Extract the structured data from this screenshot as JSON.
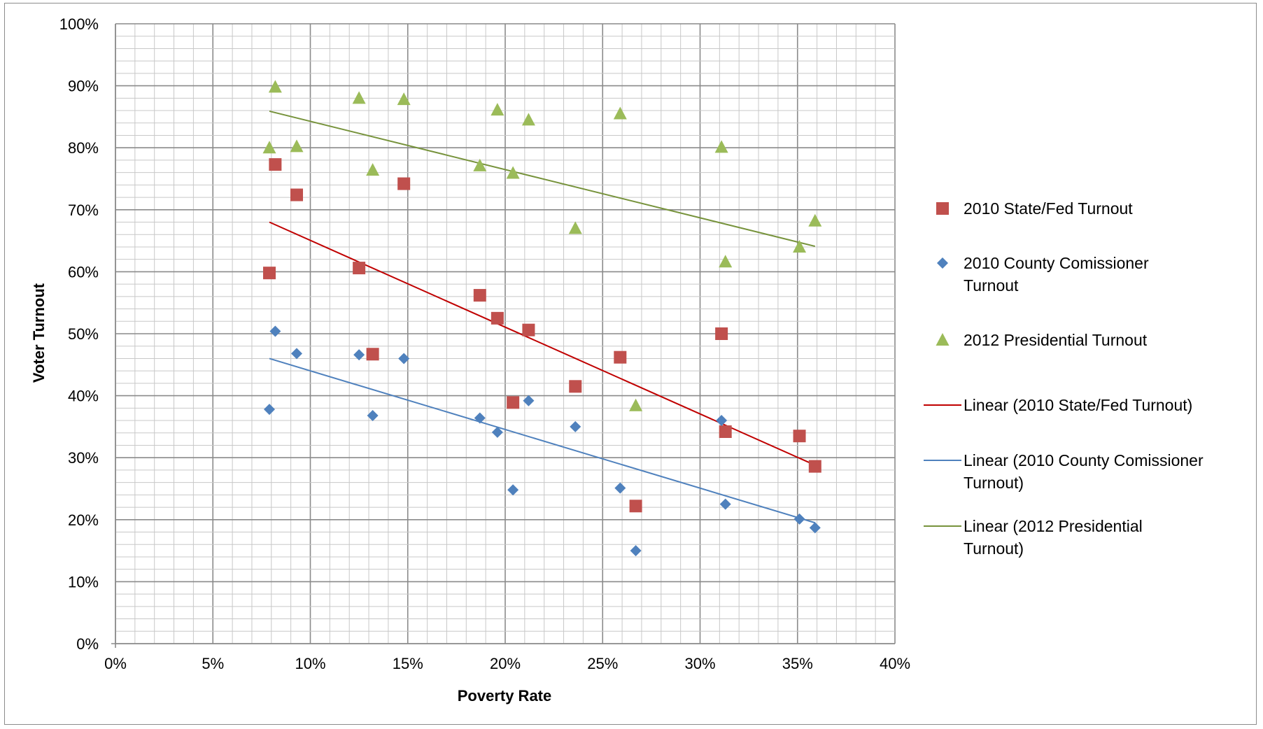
{
  "chart_data": {
    "type": "scatter",
    "title": "",
    "xlabel": "Poverty Rate",
    "ylabel": "Voter Turnout",
    "xlim": [
      0,
      40
    ],
    "ylim": [
      0,
      100
    ],
    "x_ticks": [
      "0%",
      "5%",
      "10%",
      "15%",
      "20%",
      "25%",
      "30%",
      "35%",
      "40%"
    ],
    "y_ticks": [
      "0%",
      "10%",
      "20%",
      "30%",
      "40%",
      "50%",
      "60%",
      "70%",
      "80%",
      "90%",
      "100%"
    ],
    "grid": true,
    "legend_position": "right",
    "series": [
      {
        "name": "2010 State/Fed Turnout",
        "marker": "square",
        "color": "#c0504d",
        "points": [
          [
            7.9,
            59.8
          ],
          [
            8.2,
            77.3
          ],
          [
            9.3,
            72.4
          ],
          [
            12.5,
            60.6
          ],
          [
            13.2,
            46.7
          ],
          [
            14.8,
            74.2
          ],
          [
            18.7,
            56.2
          ],
          [
            19.6,
            52.5
          ],
          [
            20.4,
            38.9
          ],
          [
            21.2,
            50.6
          ],
          [
            23.6,
            41.5
          ],
          [
            25.9,
            46.2
          ],
          [
            26.7,
            22.2
          ],
          [
            31.1,
            50.0
          ],
          [
            31.3,
            34.2
          ],
          [
            35.1,
            33.5
          ],
          [
            35.9,
            28.6
          ]
        ]
      },
      {
        "name": "2010 County Comissioner Turnout",
        "marker": "diamond",
        "color": "#4f81bd",
        "points": [
          [
            7.9,
            37.8
          ],
          [
            8.2,
            50.4
          ],
          [
            9.3,
            46.8
          ],
          [
            12.5,
            46.6
          ],
          [
            13.2,
            36.8
          ],
          [
            14.8,
            46.0
          ],
          [
            18.7,
            36.4
          ],
          [
            19.6,
            34.1
          ],
          [
            20.4,
            24.8
          ],
          [
            21.2,
            39.2
          ],
          [
            23.6,
            35.0
          ],
          [
            25.9,
            25.1
          ],
          [
            26.7,
            15.0
          ],
          [
            31.1,
            36.0
          ],
          [
            31.3,
            22.5
          ],
          [
            35.1,
            20.1
          ],
          [
            35.9,
            18.7
          ]
        ]
      },
      {
        "name": "2012 Presidential Turnout",
        "marker": "triangle",
        "color": "#9bbb59",
        "points": [
          [
            7.9,
            80.0
          ],
          [
            8.2,
            89.8
          ],
          [
            9.3,
            80.2
          ],
          [
            12.5,
            88.0
          ],
          [
            13.2,
            76.4
          ],
          [
            14.8,
            87.8
          ],
          [
            18.7,
            77.1
          ],
          [
            19.6,
            86.1
          ],
          [
            20.4,
            75.9
          ],
          [
            21.2,
            84.5
          ],
          [
            23.6,
            67.0
          ],
          [
            25.9,
            85.5
          ],
          [
            26.7,
            38.4
          ],
          [
            31.1,
            80.1
          ],
          [
            31.3,
            61.6
          ],
          [
            35.1,
            64.0
          ],
          [
            35.9,
            68.2
          ]
        ]
      }
    ],
    "trendlines": [
      {
        "name": "Linear (2010 State/Fed Turnout)",
        "color": "#c00000",
        "x": [
          7.9,
          35.9
        ],
        "y": [
          68.0,
          28.8
        ]
      },
      {
        "name": "Linear (2010 County Comissioner Turnout)",
        "color": "#4f81bd",
        "x": [
          7.9,
          35.9
        ],
        "y": [
          46.0,
          19.5
        ]
      },
      {
        "name": "Linear (2012 Presidential Turnout)",
        "color": "#77933c",
        "x": [
          7.9,
          35.9
        ],
        "y": [
          85.9,
          64.1
        ]
      }
    ]
  },
  "legend": {
    "items": [
      {
        "kind": "square",
        "color": "#c0504d",
        "lines": [
          "2010 State/Fed Turnout"
        ]
      },
      {
        "kind": "diamond",
        "color": "#4f81bd",
        "lines": [
          "2010 County Comissioner",
          "Turnout"
        ]
      },
      {
        "kind": "triangle",
        "color": "#9bbb59",
        "lines": [
          "2012 Presidential Turnout"
        ]
      },
      {
        "kind": "line",
        "color": "#c00000",
        "lines": [
          "Linear (2010 State/Fed Turnout)"
        ]
      },
      {
        "kind": "line",
        "color": "#4f81bd",
        "lines": [
          "Linear (2010 County Comissioner",
          "Turnout)"
        ]
      },
      {
        "kind": "line",
        "color": "#77933c",
        "lines": [
          "Linear (2012 Presidential",
          "Turnout)"
        ]
      }
    ]
  }
}
